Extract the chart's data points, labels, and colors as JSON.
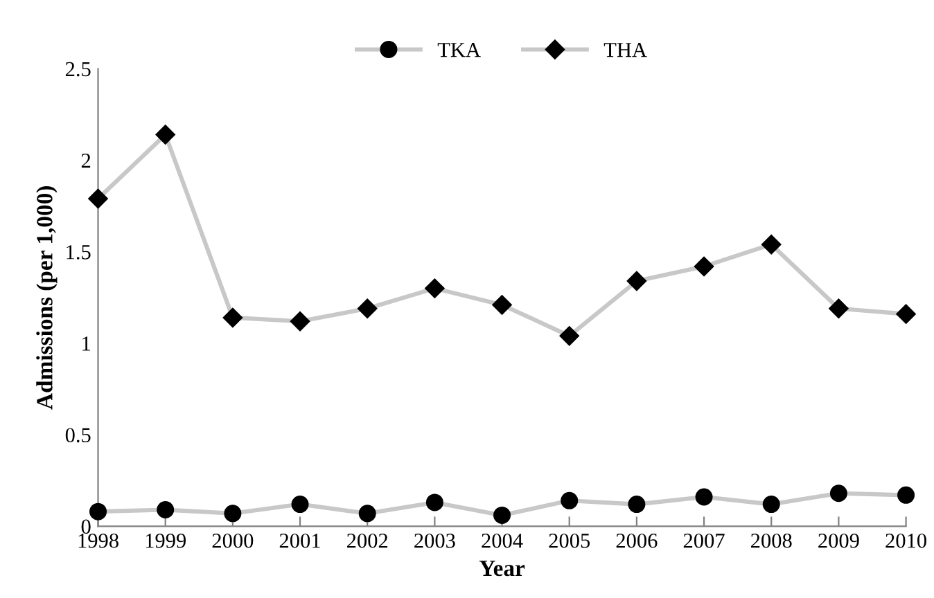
{
  "chart_data": {
    "type": "line",
    "xlabel": "Year",
    "ylabel": "Admissions (per 1,000)",
    "categories": [
      "1998",
      "1999",
      "2000",
      "2001",
      "2002",
      "2003",
      "2004",
      "2005",
      "2006",
      "2007",
      "2008",
      "2009",
      "2010"
    ],
    "series": [
      {
        "name": "TKA",
        "color": "#c8c8c8",
        "marker": "circle",
        "values": [
          0.08,
          0.09,
          0.07,
          0.12,
          0.07,
          0.13,
          0.06,
          0.14,
          0.12,
          0.16,
          0.12,
          0.18,
          0.17
        ]
      },
      {
        "name": "THA",
        "color": "#c8c8c8",
        "marker": "diamond",
        "values": [
          1.79,
          2.14,
          1.14,
          1.12,
          1.19,
          1.3,
          1.21,
          1.04,
          1.34,
          1.42,
          1.54,
          1.19,
          1.16
        ]
      }
    ],
    "ylim": [
      0,
      2.5
    ],
    "yticks": [
      0,
      0.5,
      1,
      1.5,
      2,
      2.5
    ],
    "grid": false,
    "legend": "top",
    "line_style": "solid"
  }
}
